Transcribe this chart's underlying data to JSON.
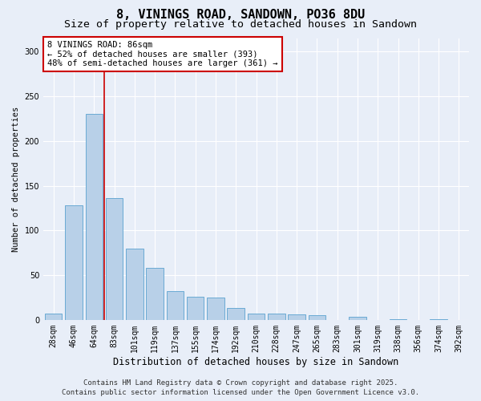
{
  "title": "8, VININGS ROAD, SANDOWN, PO36 8DU",
  "subtitle": "Size of property relative to detached houses in Sandown",
  "xlabel": "Distribution of detached houses by size in Sandown",
  "ylabel": "Number of detached properties",
  "categories": [
    "28sqm",
    "46sqm",
    "64sqm",
    "83sqm",
    "101sqm",
    "119sqm",
    "137sqm",
    "155sqm",
    "174sqm",
    "192sqm",
    "210sqm",
    "228sqm",
    "247sqm",
    "265sqm",
    "283sqm",
    "301sqm",
    "319sqm",
    "338sqm",
    "356sqm",
    "374sqm",
    "392sqm"
  ],
  "values": [
    7,
    128,
    230,
    136,
    80,
    58,
    32,
    26,
    25,
    13,
    7,
    7,
    6,
    5,
    0,
    3,
    0,
    1,
    0,
    1,
    0
  ],
  "bar_color": "#b8d0e8",
  "bar_edge_color": "#6aaad4",
  "vline_color": "#cc0000",
  "vline_x": 2.5,
  "annotation_text": "8 VININGS ROAD: 86sqm\n← 52% of detached houses are smaller (393)\n48% of semi-detached houses are larger (361) →",
  "annotation_box_edgecolor": "#cc0000",
  "ylim": [
    0,
    315
  ],
  "yticks": [
    0,
    50,
    100,
    150,
    200,
    250,
    300
  ],
  "bg_color": "#e8eef8",
  "footer_line1": "Contains HM Land Registry data © Crown copyright and database right 2025.",
  "footer_line2": "Contains public sector information licensed under the Open Government Licence v3.0.",
  "title_fontsize": 11,
  "subtitle_fontsize": 9.5,
  "xlabel_fontsize": 8.5,
  "ylabel_fontsize": 7.5,
  "tick_fontsize": 7,
  "annotation_fontsize": 7.5,
  "footer_fontsize": 6.5
}
